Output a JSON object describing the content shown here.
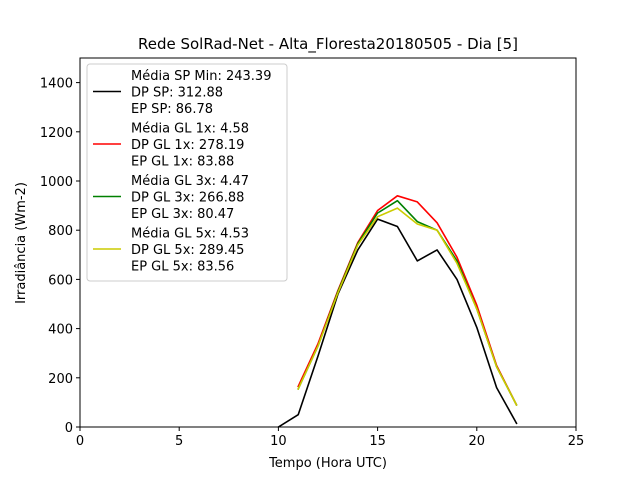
{
  "chart_data": {
    "type": "line",
    "title": "Rede SolRad-Net - Alta_Floresta20180505 - Dia [5]",
    "xlabel": "Tempo (Hora UTC)",
    "ylabel": "Irradiância (Wm-2)",
    "xlim": [
      0,
      25
    ],
    "ylim": [
      0,
      1500
    ],
    "xticks": [
      0,
      5,
      10,
      15,
      20,
      25
    ],
    "yticks": [
      0,
      200,
      400,
      600,
      800,
      1000,
      1200,
      1400
    ],
    "grid": false,
    "legend_position": "top-left",
    "series": [
      {
        "color": "#000000",
        "legend": [
          "Média SP Min: 243.39",
          "DP SP: 312.88",
          "EP SP: 86.78"
        ],
        "x": [
          10,
          11,
          12,
          13,
          14,
          15,
          16,
          17,
          18,
          19,
          20,
          21,
          22
        ],
        "y": [
          0,
          50,
          290,
          540,
          720,
          845,
          815,
          675,
          720,
          600,
          405,
          160,
          15
        ]
      },
      {
        "color": "#ff0000",
        "legend": [
          "Média GL 1x: 4.58",
          "DP GL 1x: 278.19",
          "EP GL 1x: 83.88"
        ],
        "x": [
          11,
          12,
          13,
          14,
          15,
          16,
          17,
          18,
          19,
          20,
          21,
          22
        ],
        "y": [
          165,
          340,
          555,
          750,
          880,
          940,
          915,
          830,
          690,
          495,
          250,
          90
        ]
      },
      {
        "color": "#008000",
        "legend": [
          "Média GL 3x: 4.47",
          "DP GL 3x: 266.88",
          "EP GL 3x: 80.47"
        ],
        "x": [
          11,
          12,
          13,
          14,
          15,
          16,
          17,
          18,
          19,
          20,
          21,
          22
        ],
        "y": [
          155,
          330,
          550,
          745,
          870,
          920,
          835,
          800,
          675,
          480,
          245,
          90
        ]
      },
      {
        "color": "#cccc00",
        "legend": [
          "Média GL 5x: 4.53",
          "DP GL 5x: 289.45",
          "EP GL 5x: 83.56"
        ],
        "x": [
          11,
          12,
          13,
          14,
          15,
          16,
          17,
          18,
          19,
          20,
          21,
          22
        ],
        "y": [
          155,
          330,
          545,
          740,
          855,
          890,
          825,
          800,
          665,
          480,
          245,
          90
        ]
      }
    ]
  }
}
